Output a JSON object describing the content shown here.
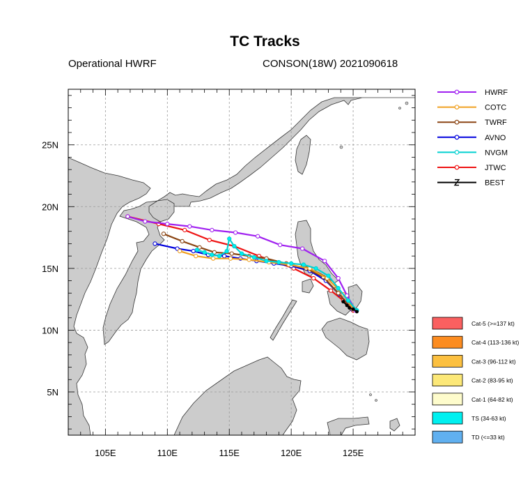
{
  "title": "TC Tracks",
  "subtitle_left": "Operational HWRF",
  "subtitle_right": "CONSON(18W) 2021090618",
  "map": {
    "lon_range": [
      102,
      130
    ],
    "lat_range": [
      1.5,
      29.5
    ],
    "x_ticks": [
      {
        "lon": 105,
        "label": "105E"
      },
      {
        "lon": 110,
        "label": "110E"
      },
      {
        "lon": 115,
        "label": "115E"
      },
      {
        "lon": 120,
        "label": "120E"
      },
      {
        "lon": 125,
        "label": "125E"
      }
    ],
    "y_ticks": [
      {
        "lat": 5,
        "label": "5N"
      },
      {
        "lat": 10,
        "label": "10N"
      },
      {
        "lat": 15,
        "label": "15N"
      },
      {
        "lat": 20,
        "label": "20N"
      },
      {
        "lat": 25,
        "label": "25N"
      }
    ],
    "land_color": "#cccccc",
    "ocean_color": "#ffffff"
  },
  "tracks": [
    {
      "name": "HWRF",
      "color": "#a020f0",
      "points": [
        [
          125.2,
          11.6
        ],
        [
          124.5,
          12.8
        ],
        [
          123.8,
          14.2
        ],
        [
          122.7,
          15.6
        ],
        [
          120.9,
          16.6
        ],
        [
          119.1,
          16.9
        ],
        [
          117.3,
          17.6
        ],
        [
          115.5,
          17.9
        ],
        [
          113.6,
          18.1
        ],
        [
          111.8,
          18.4
        ],
        [
          110.0,
          18.6
        ],
        [
          108.2,
          18.8
        ],
        [
          106.8,
          19.2
        ]
      ]
    },
    {
      "name": "COTC",
      "color": "#f0a020",
      "points": [
        [
          125.0,
          11.7
        ],
        [
          124.2,
          12.9
        ],
        [
          122.9,
          14.2
        ],
        [
          121.5,
          15.0
        ],
        [
          119.8,
          15.3
        ],
        [
          118.2,
          15.5
        ],
        [
          116.6,
          15.7
        ],
        [
          115.1,
          15.8
        ],
        [
          113.7,
          15.8
        ],
        [
          112.3,
          16.0
        ],
        [
          111.0,
          16.4
        ]
      ]
    },
    {
      "name": "TWRF",
      "color": "#8b4513",
      "points": [
        [
          124.8,
          11.8
        ],
        [
          123.8,
          13.0
        ],
        [
          122.6,
          14.3
        ],
        [
          121.2,
          15.0
        ],
        [
          119.6,
          15.4
        ],
        [
          118.0,
          15.8
        ],
        [
          116.6,
          16.0
        ],
        [
          115.2,
          16.2
        ],
        [
          113.8,
          16.3
        ],
        [
          112.6,
          16.7
        ],
        [
          111.2,
          17.2
        ],
        [
          109.7,
          17.8
        ]
      ]
    },
    {
      "name": "AVNO",
      "color": "#0000dd",
      "points": [
        [
          124.9,
          11.7
        ],
        [
          123.9,
          12.9
        ],
        [
          122.8,
          14.0
        ],
        [
          121.5,
          14.8
        ],
        [
          120.0,
          15.2
        ],
        [
          118.6,
          15.4
        ],
        [
          117.2,
          15.6
        ],
        [
          115.9,
          15.8
        ],
        [
          114.6,
          16.0
        ],
        [
          113.3,
          16.1
        ],
        [
          112.1,
          16.4
        ],
        [
          110.8,
          16.6
        ],
        [
          109.0,
          17.0
        ]
      ]
    },
    {
      "name": "NVGM",
      "color": "#00d0d0",
      "points": [
        [
          125.3,
          11.6
        ],
        [
          124.6,
          12.4
        ],
        [
          123.8,
          13.4
        ],
        [
          123.0,
          14.4
        ],
        [
          122.0,
          15.0
        ],
        [
          121.0,
          15.3
        ],
        [
          120.0,
          15.4
        ],
        [
          119.0,
          15.5
        ],
        [
          118.0,
          15.6
        ],
        [
          117.0,
          15.9
        ],
        [
          116.0,
          16.2
        ],
        [
          115.4,
          16.8
        ],
        [
          115.0,
          17.4
        ],
        [
          114.8,
          16.4
        ],
        [
          114.2,
          16.0
        ],
        [
          113.6,
          16.1
        ],
        [
          113.0,
          16.3
        ],
        [
          112.4,
          16.5
        ]
      ]
    },
    {
      "name": "JTWC",
      "color": "#ee1111",
      "points": [
        [
          125.0,
          11.6
        ],
        [
          124.2,
          12.4
        ],
        [
          123.2,
          13.2
        ],
        [
          121.8,
          14.2
        ],
        [
          120.2,
          15.0
        ],
        [
          117.4,
          16.0
        ],
        [
          115.4,
          16.8
        ],
        [
          113.4,
          17.3
        ],
        [
          111.4,
          18.1
        ],
        [
          109.3,
          18.6
        ],
        [
          106.8,
          19.2
        ]
      ]
    },
    {
      "name": "BEST",
      "color": "#000000",
      "points": [
        [
          125.3,
          11.5
        ],
        [
          125.0,
          11.7
        ],
        [
          124.7,
          11.8
        ],
        [
          124.5,
          12.0
        ],
        [
          124.2,
          12.3
        ]
      ]
    }
  ],
  "legend_tracks": [
    "HWRF",
    "COTC",
    "TWRF",
    "AVNO",
    "NVGM",
    "JTWC",
    "BEST"
  ],
  "legend_categories": [
    {
      "label": "Cat-5 (>=137 kt)",
      "color": "#fa6060"
    },
    {
      "label": "Cat-4 (113-136 kt)",
      "color": "#fc8c20"
    },
    {
      "label": "Cat-3 (96-112 kt)",
      "color": "#fcc040"
    },
    {
      "label": "Cat-2 (83-95 kt)",
      "color": "#fce878"
    },
    {
      "label": "Cat-1 (64-82 kt)",
      "color": "#fefccc"
    },
    {
      "label": "TS (34-63 kt)",
      "color": "#00f0f0"
    },
    {
      "label": "TD (<=33 kt)",
      "color": "#60b0f0"
    }
  ]
}
